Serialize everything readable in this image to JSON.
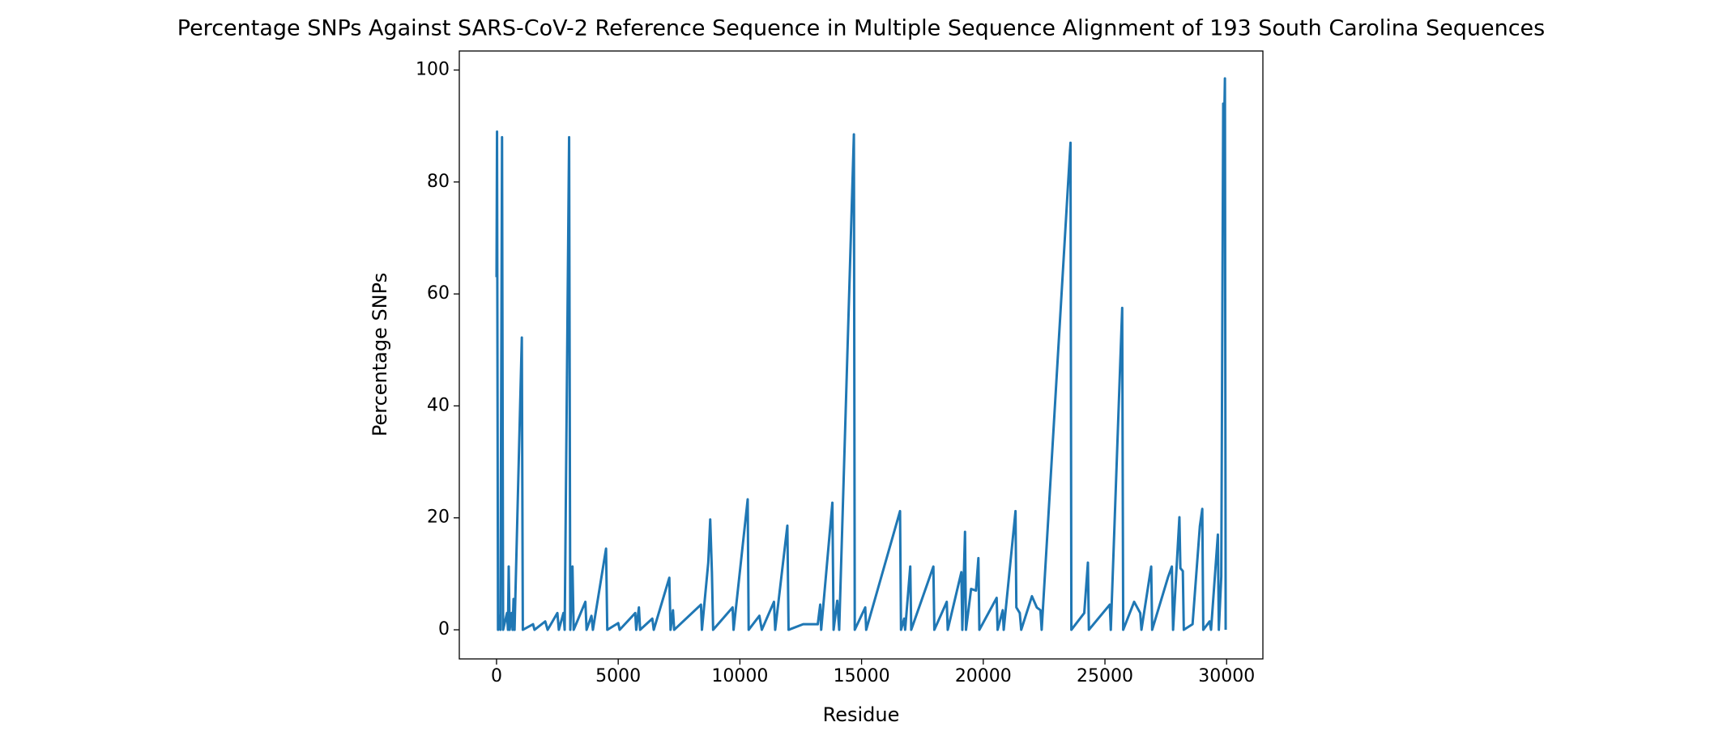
{
  "chart_data": {
    "type": "line",
    "title": "Percentage SNPs Against SARS-CoV-2 Reference Sequence in Multiple Sequence Alignment of 193 South Carolina Sequences",
    "xlabel": "Residue",
    "ylabel": "Percentage SNPs",
    "color": "#1f77b4",
    "xlim": [
      -1530,
      31490
    ],
    "ylim": [
      -5.2,
      103.4
    ],
    "xticks": [
      0,
      5000,
      10000,
      15000,
      20000,
      25000,
      30000
    ],
    "yticks": [
      0,
      20,
      40,
      60,
      80,
      100
    ],
    "grid": false,
    "x": [
      0,
      20,
      60,
      120,
      160,
      226,
      270,
      430,
      470,
      500,
      540,
      620,
      660,
      700,
      740,
      1039,
      1080,
      1500,
      1560,
      2000,
      2100,
      2500,
      2560,
      2750,
      2800,
      2982,
      3030,
      3120,
      3170,
      3650,
      3700,
      3900,
      3960,
      4500,
      4550,
      5000,
      5060,
      5700,
      5740,
      5850,
      5900,
      6400,
      6460,
      7100,
      7150,
      7250,
      7300,
      8400,
      8440,
      8700,
      8780,
      8850,
      8900,
      9700,
      9740,
      10320,
      10360,
      10800,
      10900,
      11400,
      11450,
      11950,
      12000,
      12600,
      13200,
      13300,
      13340,
      13800,
      13850,
      14000,
      14080,
      14684,
      14720,
      15150,
      15190,
      16580,
      16620,
      16750,
      16790,
      17000,
      17040,
      17950,
      17990,
      18500,
      18540,
      19100,
      19140,
      19250,
      19290,
      19500,
      19700,
      19800,
      19840,
      20550,
      20590,
      20800,
      20840,
      21325,
      21360,
      21500,
      21560,
      22000,
      22200,
      22350,
      22400,
      23585,
      23620,
      24150,
      24300,
      24340,
      25200,
      25240,
      25709,
      25750,
      26200,
      26450,
      26500,
      26900,
      26940,
      27600,
      27750,
      27800,
      28060,
      28100,
      28200,
      28240,
      28600,
      28900,
      29000,
      29040,
      29300,
      29360,
      29640,
      29680,
      29780,
      29860,
      29880,
      29930,
      29960
    ],
    "values": [
      63,
      89,
      0,
      2.5,
      0,
      88,
      0,
      3,
      0,
      11.3,
      0,
      3,
      0,
      5.5,
      0,
      52.2,
      0,
      1,
      0,
      1.5,
      0,
      3,
      0,
      3,
      0,
      88,
      0,
      11.3,
      0,
      5,
      0,
      2.5,
      0,
      14.5,
      0,
      1.2,
      0,
      3,
      0,
      4,
      0,
      2,
      0,
      9.3,
      0,
      3.5,
      0,
      4.5,
      0,
      12,
      19.7,
      10.3,
      0,
      4,
      0,
      23.3,
      0,
      2.5,
      0,
      5,
      0,
      18.6,
      0,
      1,
      1,
      4.5,
      0,
      22.7,
      0,
      5.2,
      0,
      88.5,
      0,
      4,
      0,
      21.2,
      0,
      2,
      0,
      11.3,
      0,
      11.3,
      0,
      5,
      0,
      10.3,
      0,
      17.5,
      0,
      7.3,
      7,
      12.8,
      0,
      5.7,
      0,
      3.5,
      0,
      21.2,
      4,
      3,
      0,
      6,
      4,
      3.5,
      0,
      87,
      0,
      3,
      12,
      0,
      4.5,
      0,
      57.5,
      0,
      5,
      3,
      0,
      11.3,
      0,
      9.5,
      11.3,
      0,
      20.1,
      11,
      10.5,
      0,
      1,
      18.5,
      21.6,
      0,
      1.5,
      0,
      17,
      0,
      9.5,
      94,
      85,
      98.5,
      0
    ]
  }
}
